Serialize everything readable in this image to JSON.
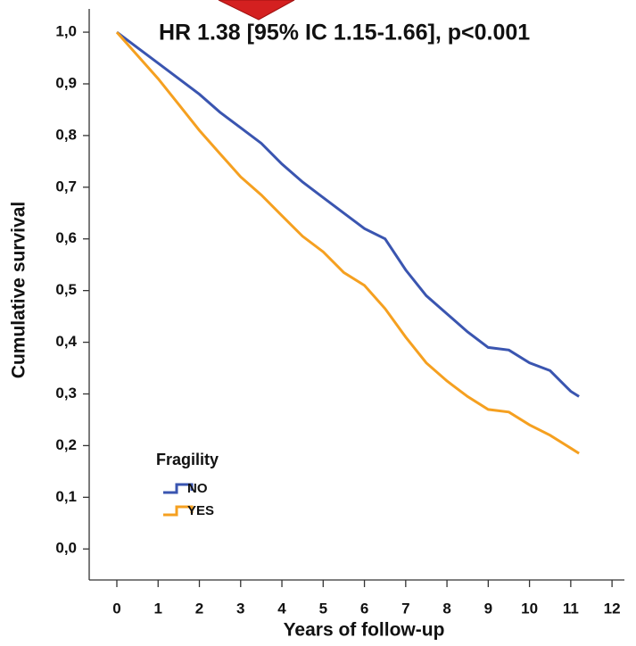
{
  "chart_data": {
    "type": "line",
    "title": "HR 1.38 [95% IC 1.15-1.66], p<0.001",
    "x_label": "Years of follow-up",
    "y_label": "Cumulative survival",
    "legend_title": "Fragility",
    "x": [
      0,
      0.5,
      1,
      1.5,
      2,
      2.5,
      3,
      3.5,
      4,
      4.5,
      5,
      5.5,
      6,
      6.5,
      7,
      7.5,
      8,
      8.5,
      9,
      9.5,
      10,
      10.5,
      11,
      11.2
    ],
    "series": [
      {
        "name": "NO",
        "color": "#3a55b0",
        "values": [
          1.0,
          0.97,
          0.94,
          0.91,
          0.88,
          0.845,
          0.815,
          0.785,
          0.745,
          0.71,
          0.68,
          0.65,
          0.62,
          0.6,
          0.54,
          0.49,
          0.455,
          0.42,
          0.39,
          0.385,
          0.36,
          0.345,
          0.305,
          0.295
        ]
      },
      {
        "name": "YES",
        "color": "#f5a020",
        "values": [
          1.0,
          0.955,
          0.91,
          0.86,
          0.81,
          0.765,
          0.72,
          0.685,
          0.645,
          0.605,
          0.575,
          0.535,
          0.51,
          0.465,
          0.41,
          0.36,
          0.325,
          0.295,
          0.27,
          0.265,
          0.24,
          0.22,
          0.195,
          0.185
        ]
      }
    ],
    "xlim": [
      -0.67,
      12.3
    ],
    "ylim": [
      -0.06,
      1.045
    ],
    "xticks": [
      0,
      1,
      2,
      3,
      4,
      5,
      6,
      7,
      8,
      9,
      10,
      11,
      12
    ],
    "yticks": [
      {
        "value": 0,
        "label": "0,0"
      },
      {
        "value": 0.1,
        "label": "0,1"
      },
      {
        "value": 0.2,
        "label": "0,2"
      },
      {
        "value": 0.3,
        "label": "0,3"
      },
      {
        "value": 0.4,
        "label": "0,4"
      },
      {
        "value": 0.5,
        "label": "0,5"
      },
      {
        "value": 0.6,
        "label": "0,6"
      },
      {
        "value": 0.7,
        "label": "0,7"
      },
      {
        "value": 0.8,
        "label": "0,8"
      },
      {
        "value": 0.9,
        "label": "0,9"
      },
      {
        "value": 1,
        "label": "1,0"
      }
    ],
    "grid": false
  }
}
